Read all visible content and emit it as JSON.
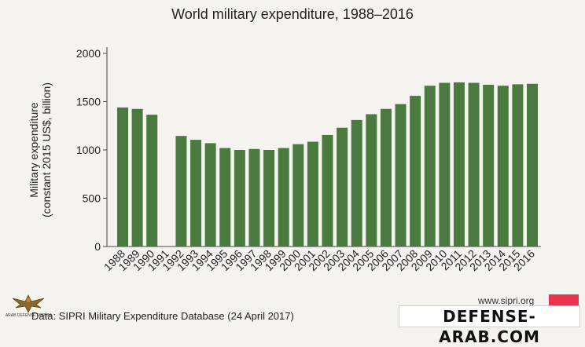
{
  "chart_data": {
    "type": "bar",
    "title": "World military expenditure, 1988–2016",
    "ylabel_line1": "Military expenditure",
    "ylabel_line2": "(constant 2015 US$, billion)",
    "xlabel": "",
    "ylim": [
      0,
      2000
    ],
    "yticks": [
      0,
      500,
      1000,
      1500,
      2000
    ],
    "grid": false,
    "bar_color": "#4a7a3f",
    "categories": [
      "1988",
      "1989",
      "1990",
      "1991",
      "1992",
      "1993",
      "1994",
      "1995",
      "1996",
      "1997",
      "1998",
      "1999",
      "2000",
      "2001",
      "2002",
      "2003",
      "2004",
      "2005",
      "2006",
      "2007",
      "2008",
      "2009",
      "2010",
      "2011",
      "2012",
      "2013",
      "2014",
      "2015",
      "2016"
    ],
    "values": [
      1440,
      1425,
      1365,
      null,
      1145,
      1105,
      1070,
      1020,
      1000,
      1010,
      1000,
      1020,
      1060,
      1085,
      1155,
      1230,
      1310,
      1370,
      1425,
      1475,
      1560,
      1665,
      1695,
      1700,
      1695,
      1675,
      1665,
      1680,
      1685
    ]
  },
  "source": "Data: SIPRI Military Expenditure Database (24 April 2017)",
  "website": "www.sipri.org",
  "brand_color": "#e8344e",
  "watermark_right": "DEFENSE-ARAB.COM",
  "watermark_left": "ARAB DEFENSE FORUM"
}
